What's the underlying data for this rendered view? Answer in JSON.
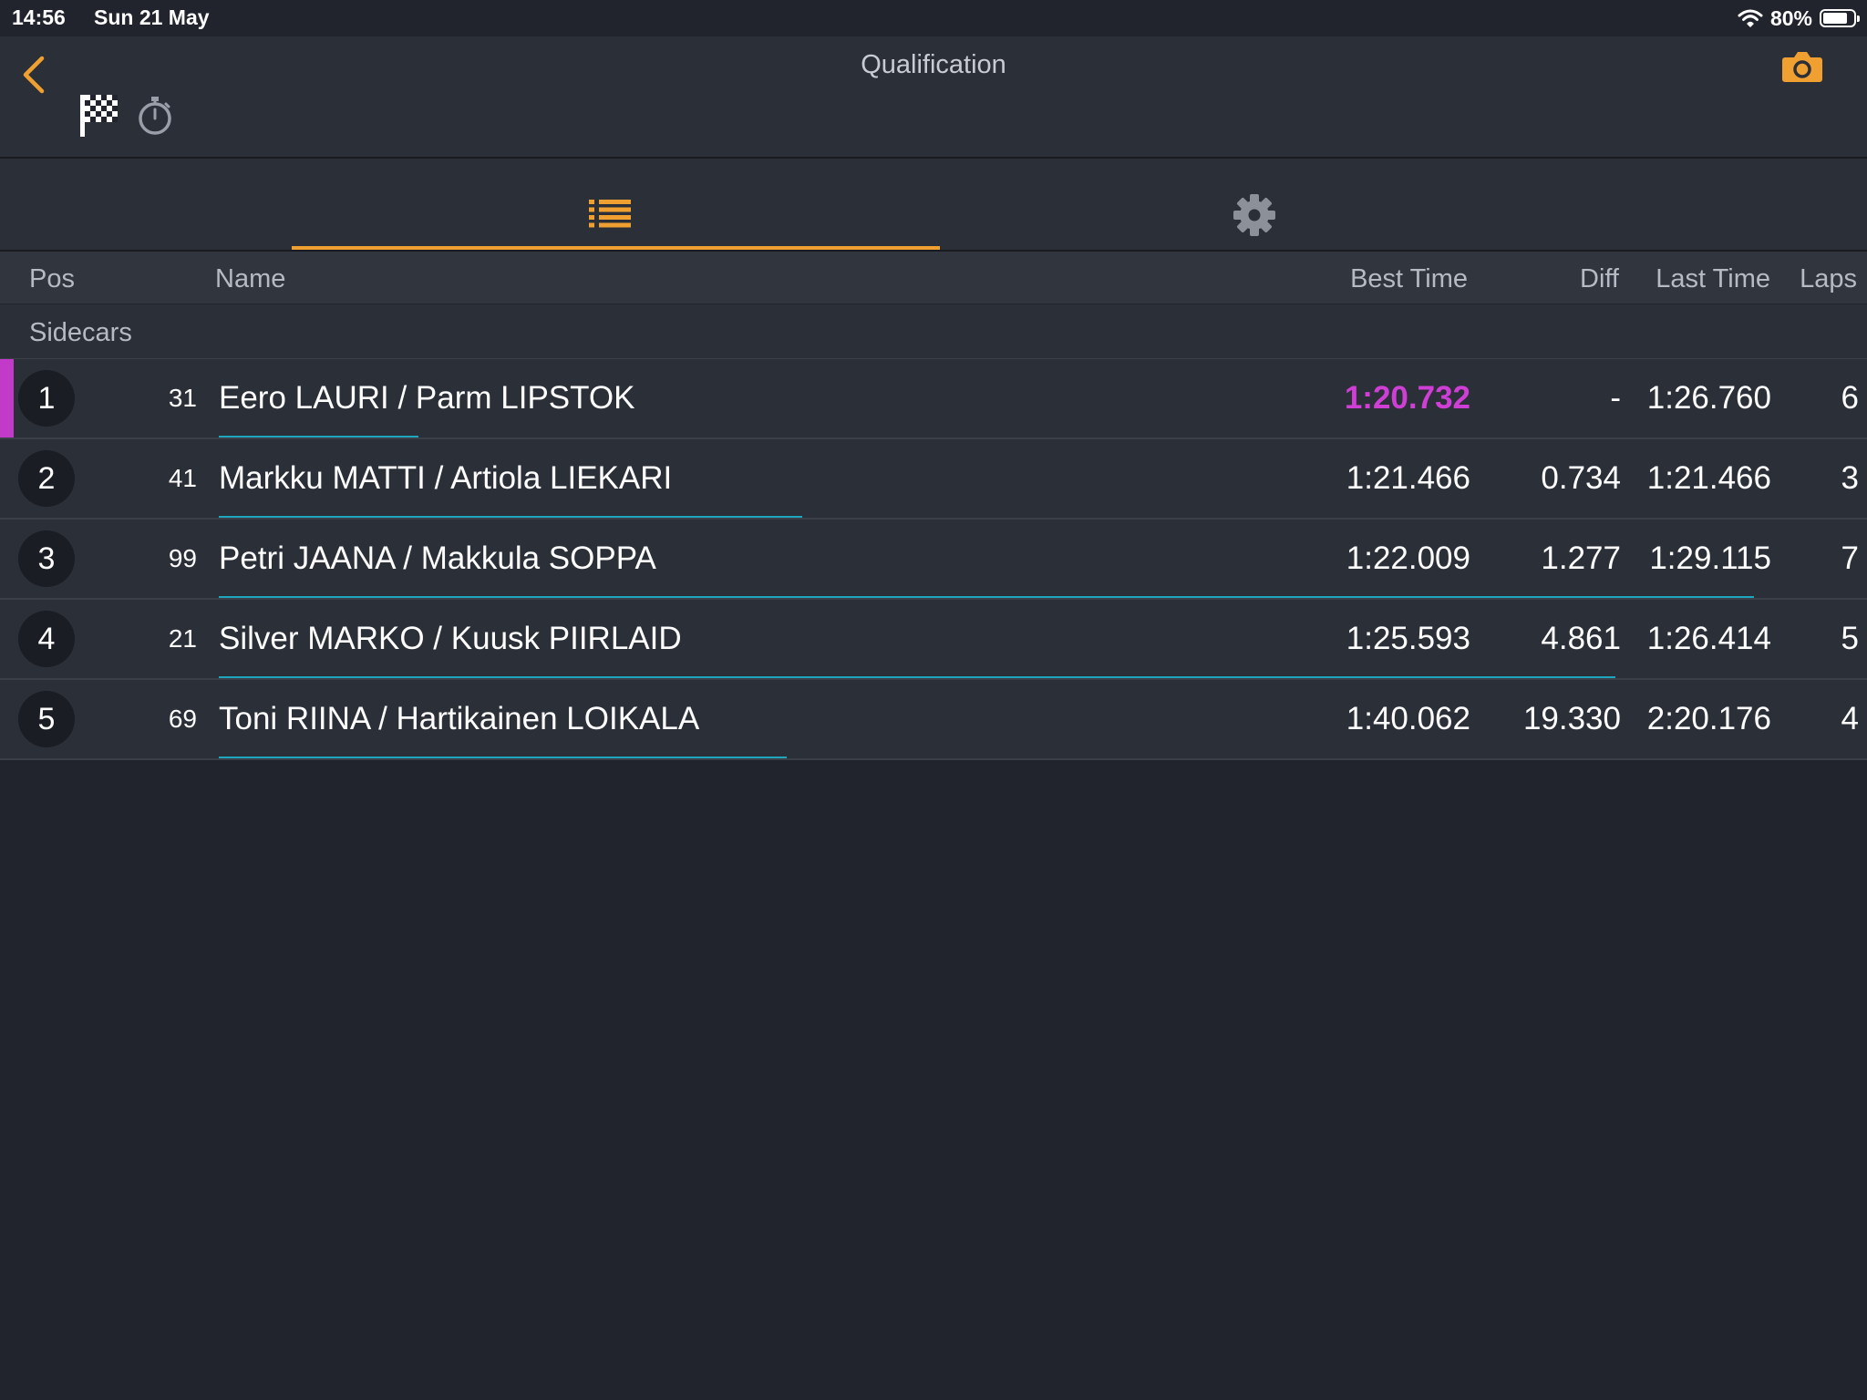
{
  "status_bar": {
    "time": "14:56",
    "date": "Sun 21 May",
    "battery_pct": "80%",
    "battery_level": 0.8
  },
  "header": {
    "title": "Qualification"
  },
  "icons": {
    "back": "chevron-left-icon",
    "flag": "checkered-flag-icon",
    "stopwatch": "stopwatch-icon",
    "camera": "camera-icon",
    "list_tab": "list-icon",
    "settings_tab": "gear-icon"
  },
  "colors": {
    "accent": "#f0a030",
    "fastest": "#cf3fd6",
    "progress": "#1ea6bd",
    "background": "#21242d",
    "row": "#2b2f38"
  },
  "tabs": {
    "selected": "list"
  },
  "columns": {
    "pos": "Pos",
    "name": "Name",
    "best_time": "Best Time",
    "diff": "Diff",
    "last_time": "Last Time",
    "laps": "Laps"
  },
  "group": "Sidecars",
  "rows": [
    {
      "pos": "1",
      "number": "31",
      "name": "Eero LAURI / Parm LIPSTOK",
      "best": "1:20.732",
      "diff": "-",
      "last": "1:26.760",
      "laps": "6",
      "fastest": true,
      "progress": 0.13
    },
    {
      "pos": "2",
      "number": "41",
      "name": "Markku MATTI / Artiola LIEKARI",
      "best": "1:21.466",
      "diff": "0.734",
      "last": "1:21.466",
      "laps": "3",
      "fastest": false,
      "progress": 0.38
    },
    {
      "pos": "3",
      "number": "99",
      "name": "Petri JAANA / Makkula SOPPA",
      "best": "1:22.009",
      "diff": "1.277",
      "last": "1:29.115",
      "laps": "7",
      "fastest": false,
      "progress": 1.0
    },
    {
      "pos": "4",
      "number": "21",
      "name": "Silver MARKO / Kuusk PIIRLAID",
      "best": "1:25.593",
      "diff": "4.861",
      "last": "1:26.414",
      "laps": "5",
      "fastest": false,
      "progress": 0.91
    },
    {
      "pos": "5",
      "number": "69",
      "name": "Toni RIINA / Hartikainen LOIKALA",
      "best": "1:40.062",
      "diff": "19.330",
      "last": "2:20.176",
      "laps": "4",
      "fastest": false,
      "progress": 0.37
    }
  ]
}
